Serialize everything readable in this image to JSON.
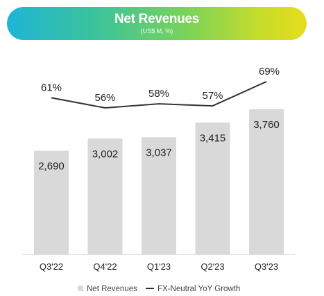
{
  "header": {
    "title": "Net Revenues",
    "subtitle": "(US$ M, %)",
    "colors": [
      "#1fb5d6",
      "#3cc39a",
      "#7ad35a",
      "#e6dd1c"
    ]
  },
  "chart_data": {
    "type": "bar",
    "title": "Net Revenues",
    "subtitle": "(US$ M, %)",
    "categories": [
      "Q3'22",
      "Q4'22",
      "Q1'23",
      "Q2'23",
      "Q3'23"
    ],
    "series": [
      {
        "name": "Net Revenues",
        "type": "bar",
        "values": [
          2690,
          3002,
          3037,
          3415,
          3760
        ],
        "labels": [
          "2,690",
          "3,002",
          "3,037",
          "3,415",
          "3,760"
        ],
        "color": "#d9d9d9"
      },
      {
        "name": "FX-Neutral YoY Growth",
        "type": "line",
        "values": [
          61,
          56,
          58,
          57,
          69
        ],
        "labels": [
          "61%",
          "56%",
          "58%",
          "57%",
          "69%"
        ],
        "color": "#333333"
      }
    ],
    "ylim": [
      0,
      3760
    ],
    "line_ylim": [
      56,
      69
    ],
    "grid": false,
    "legend": "bottom"
  }
}
